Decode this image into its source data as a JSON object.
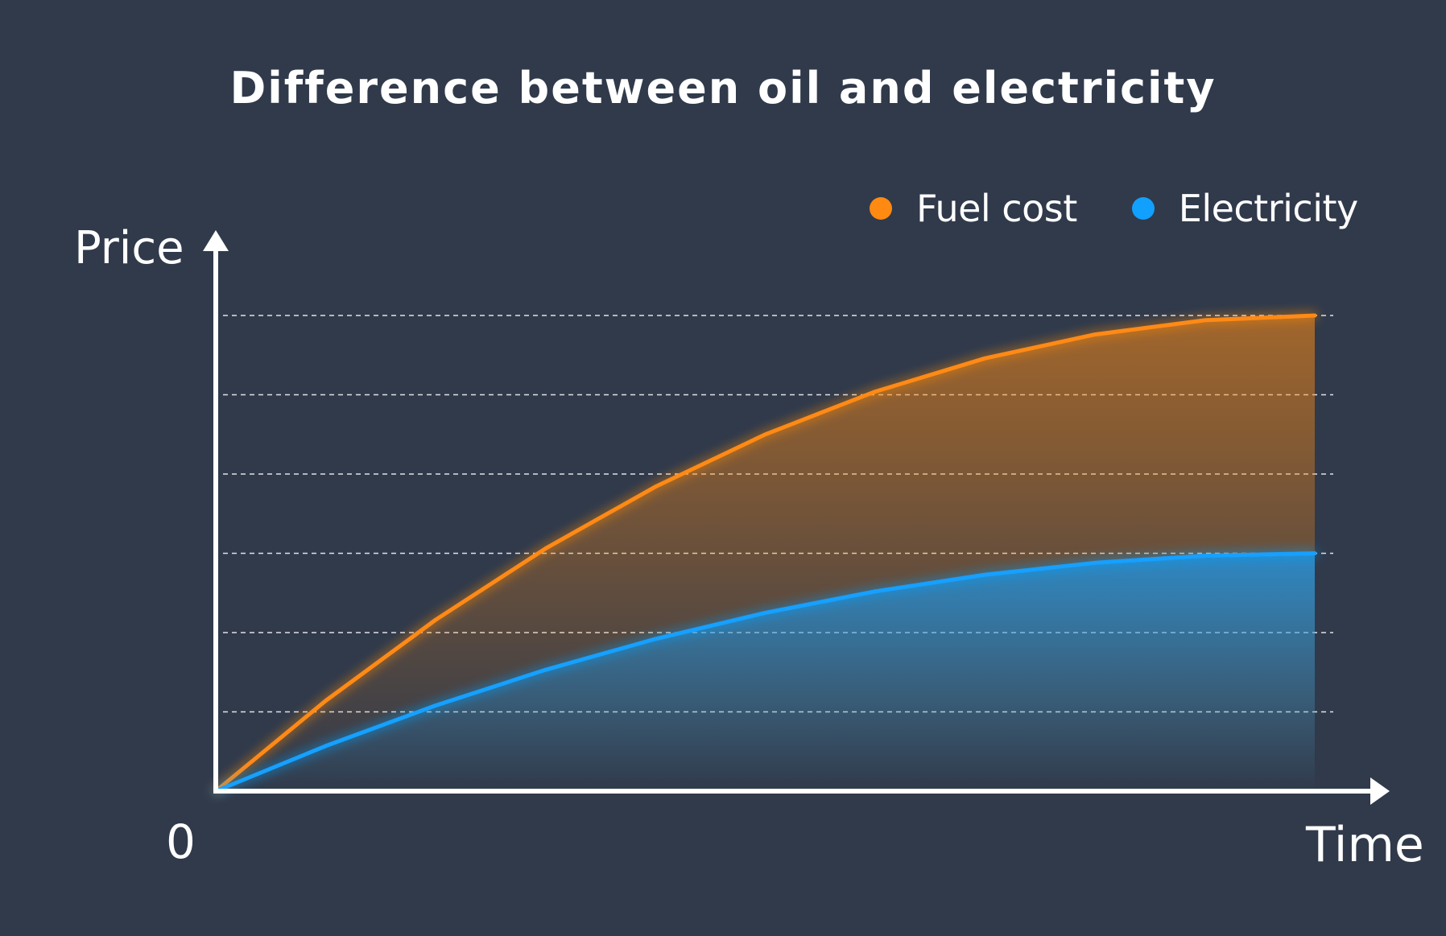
{
  "chart_data": {
    "type": "line",
    "title": "Difference between oil and electricity",
    "xlabel": "Time",
    "ylabel": "Price",
    "origin_label": "0",
    "x": [
      0,
      1,
      2,
      3,
      4,
      5,
      6,
      7,
      8,
      9,
      10
    ],
    "series": [
      {
        "name": "Fuel cost",
        "color": "#ff8a12",
        "values": [
          0,
          1.14,
          2.16,
          3.06,
          3.84,
          4.5,
          5.04,
          5.46,
          5.76,
          5.94,
          6.0
        ]
      },
      {
        "name": "Electricity",
        "color": "#12a0ff",
        "values": [
          0,
          0.57,
          1.08,
          1.53,
          1.92,
          2.25,
          2.52,
          2.73,
          2.88,
          2.97,
          3.0
        ]
      }
    ],
    "ylim": [
      0,
      6
    ],
    "xlim": [
      0,
      10
    ],
    "grid": true,
    "grid_style": "dashed-horizontal",
    "area_fill": true,
    "legend_position": "top-right",
    "background": "#303a4b"
  }
}
